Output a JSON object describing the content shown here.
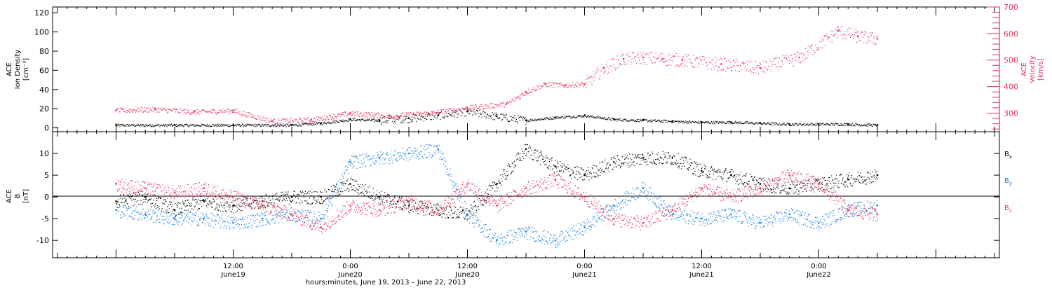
{
  "chart_data": [
    {
      "type": "scatter",
      "panel": "top",
      "ylabel_left": [
        "ACE",
        "Ion Density",
        "[cm⁻³]"
      ],
      "ylabel_right": [
        "ACE",
        "Velocity",
        "[km/s]"
      ],
      "ylim_left": [
        -4,
        126
      ],
      "ylim_right": [
        230,
        700
      ],
      "yticks_left": [
        "0",
        "20",
        "40",
        "60",
        "80",
        "100",
        "120"
      ],
      "yticks_right": [
        "300",
        "400",
        "500",
        "600",
        "700"
      ],
      "series": [
        {
          "key": "density",
          "axis": "left",
          "color": "#000000",
          "x_hours": [
            0,
            6,
            12,
            18,
            21,
            24,
            27,
            30,
            33,
            36,
            39,
            42,
            45,
            48,
            51,
            54,
            57,
            60,
            63,
            66,
            69,
            72,
            75,
            78
          ],
          "values": [
            3,
            3,
            3,
            3,
            5,
            9,
            8,
            10,
            13,
            17,
            12,
            8,
            11,
            13,
            9,
            8,
            7,
            6,
            6,
            5,
            4,
            4,
            4,
            3
          ]
        },
        {
          "key": "velocity",
          "axis": "right",
          "color": "#e8345d",
          "x_hours": [
            0,
            4,
            8,
            12,
            16,
            20,
            24,
            28,
            32,
            36,
            40,
            42,
            44,
            46,
            48,
            50,
            52,
            54,
            56,
            58,
            62,
            66,
            70,
            74,
            76,
            78
          ],
          "values": [
            310,
            315,
            305,
            310,
            270,
            275,
            300,
            290,
            300,
            320,
            335,
            380,
            410,
            405,
            410,
            470,
            505,
            510,
            505,
            500,
            485,
            470,
            510,
            610,
            590,
            580
          ]
        }
      ]
    },
    {
      "type": "scatter",
      "panel": "bottom",
      "ylabel": [
        "ACE",
        "B",
        "[nT]"
      ],
      "ylim": [
        -14,
        15
      ],
      "yticks": [
        "-10",
        "-5",
        "0",
        "5",
        "10"
      ],
      "legend": [
        {
          "label": "B",
          "sub": "x",
          "color": "#000000"
        },
        {
          "label": "B",
          "sub": "y",
          "color": "#1a7fe0"
        },
        {
          "label": "B",
          "sub": "z",
          "color": "#e8345d"
        }
      ],
      "legend_placement": "right",
      "series": [
        {
          "key": "bx",
          "color": "#000000",
          "x_hours": [
            0,
            3,
            6,
            9,
            12,
            15,
            18,
            21,
            24,
            27,
            30,
            33,
            36,
            39,
            42,
            45,
            48,
            51,
            54,
            57,
            60,
            63,
            66,
            69,
            72,
            75,
            78
          ],
          "values": [
            -1,
            0,
            -3,
            -1,
            -2,
            -1,
            0,
            0,
            3,
            0,
            -2,
            -3,
            -4,
            3,
            11,
            7,
            5,
            8,
            9,
            9,
            6,
            5,
            3,
            2,
            3,
            4,
            5
          ]
        },
        {
          "key": "by",
          "color": "#1a7fe0",
          "x_hours": [
            0,
            3,
            6,
            9,
            12,
            15,
            18,
            21,
            24,
            27,
            30,
            33,
            36,
            39,
            42,
            45,
            48,
            51,
            54,
            57,
            60,
            63,
            66,
            69,
            72,
            75,
            78
          ],
          "values": [
            -3,
            -4,
            -5,
            -5,
            -6,
            -5,
            -4,
            -5,
            8,
            9,
            10,
            11,
            -4,
            -10,
            -8,
            -10,
            -7,
            -2,
            2,
            -4,
            -5,
            -4,
            -6,
            -4,
            -6,
            -3,
            -2
          ]
        },
        {
          "key": "bz",
          "color": "#e8345d",
          "x_hours": [
            0,
            3,
            6,
            9,
            12,
            15,
            18,
            21,
            24,
            27,
            30,
            33,
            36,
            39,
            42,
            45,
            48,
            51,
            54,
            57,
            60,
            63,
            66,
            69,
            72,
            75,
            78
          ],
          "values": [
            3,
            2,
            1,
            2,
            0,
            -2,
            -4,
            -7,
            -2,
            -3,
            -1,
            -3,
            3,
            -2,
            2,
            4,
            0,
            -5,
            -6,
            -3,
            2,
            0,
            2,
            5,
            3,
            -3,
            -4
          ]
        }
      ]
    }
  ],
  "x_axis": {
    "hours_range": [
      -6.5,
      90.5
    ],
    "ticks": [
      {
        "hour": 12,
        "time": "12:00",
        "date": "June19"
      },
      {
        "hour": 24,
        "time": "0:00",
        "date": "June20"
      },
      {
        "hour": 36,
        "time": "12:00",
        "date": "June20"
      },
      {
        "hour": 48,
        "time": "0:00",
        "date": "June21"
      },
      {
        "hour": 60,
        "time": "12:00",
        "date": "June21"
      },
      {
        "hour": 72,
        "time": "0:00",
        "date": "June22"
      }
    ],
    "xlabel": "hours:minutes, June 19, 2013 – June 22, 2013"
  }
}
